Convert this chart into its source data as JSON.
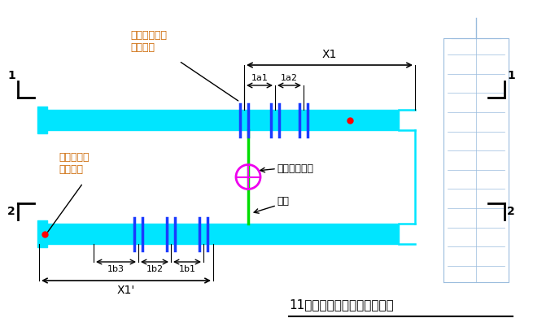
{
  "title": "11层预留套管定位平面示意图",
  "bg_color": "#ffffff",
  "cyan_color": "#00e5ff",
  "blue_color": "#1a3aff",
  "green_color": "#00dd00",
  "magenta_color": "#ee00ee",
  "black_color": "#000000",
  "red_color": "#ff0000",
  "bld_color": "#99bbdd",
  "text_label1": "套管预留位置\n（余同）",
  "text_label2": "土建基准线\n（余同）",
  "text_label3": "红外线投线仪",
  "text_label4": "激光",
  "text_x1": "X1",
  "text_x1p": "X1'",
  "text_1a1": "1a1",
  "text_1a2": "1a2",
  "text_1b1": "1b1",
  "text_1b2": "1b2",
  "text_1b3": "1b3"
}
